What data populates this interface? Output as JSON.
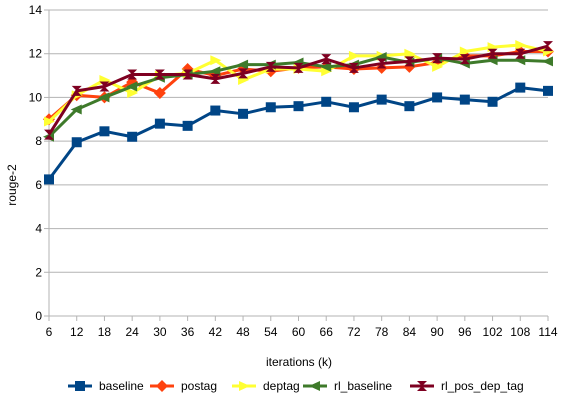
{
  "chart_data": {
    "type": "line",
    "xlabel": "iterations (k)",
    "ylabel": "rouge-2",
    "ylim": [
      0,
      14
    ],
    "yticks": [
      0,
      2,
      4,
      6,
      8,
      10,
      12,
      14
    ],
    "grid": "horizontal",
    "legend": "bottom",
    "categories": [
      "6",
      "12",
      "18",
      "24",
      "30",
      "36",
      "42",
      "48",
      "54",
      "60",
      "66",
      "72",
      "78",
      "84",
      "90",
      "96",
      "102",
      "108",
      "114"
    ],
    "series": [
      {
        "name": "baseline",
        "color": "#004586",
        "marker": "square",
        "values": [
          6.25,
          7.95,
          8.45,
          8.2,
          8.8,
          8.7,
          9.4,
          9.25,
          9.55,
          9.6,
          9.8,
          9.55,
          9.9,
          9.6,
          10.0,
          9.9,
          9.8,
          10.45,
          10.3
        ]
      },
      {
        "name": "postag",
        "color": "#ff420e",
        "marker": "diamond",
        "values": [
          9.0,
          10.1,
          10.0,
          10.7,
          10.2,
          11.3,
          11.0,
          11.3,
          11.2,
          11.35,
          11.4,
          11.3,
          11.35,
          11.4,
          11.6,
          11.9,
          11.9,
          12.1,
          12.1
        ]
      },
      {
        "name": "deptag",
        "color": "#ffff33",
        "marker": "triangle-right",
        "values": [
          8.9,
          10.1,
          10.8,
          10.2,
          11.0,
          11.1,
          11.7,
          10.8,
          11.3,
          11.3,
          11.2,
          11.9,
          11.9,
          12.0,
          11.4,
          12.1,
          12.3,
          12.4,
          12.1
        ]
      },
      {
        "name": "rl_baseline",
        "color": "#3e7a2a",
        "marker": "triangle-left",
        "values": [
          8.2,
          9.45,
          10.0,
          10.5,
          10.9,
          11.05,
          11.2,
          11.5,
          11.5,
          11.6,
          11.4,
          11.5,
          11.85,
          11.6,
          11.8,
          11.55,
          11.7,
          11.7,
          11.65
        ]
      },
      {
        "name": "rl_pos_dep_tag",
        "color": "#7e0021",
        "marker": "bowtie",
        "values": [
          8.3,
          10.3,
          10.5,
          11.05,
          11.05,
          11.05,
          10.85,
          11.1,
          11.4,
          11.35,
          11.75,
          11.35,
          11.55,
          11.65,
          11.8,
          11.75,
          12.0,
          12.0,
          12.35
        ]
      }
    ]
  }
}
